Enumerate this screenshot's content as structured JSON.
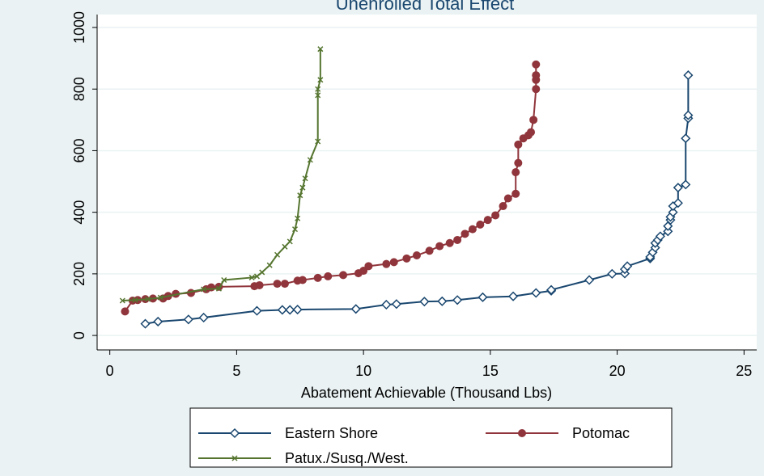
{
  "chart_data": {
    "type": "line",
    "title": "Unenrolled Total Effect",
    "x_label": "Abatement Achievable (Thousand Lbs)",
    "xlim": [
      -0.5,
      25.5
    ],
    "ylim": [
      -47,
      1042
    ],
    "xticks": [
      0,
      5,
      10,
      15,
      20,
      25
    ],
    "yticks": [
      0,
      200,
      400,
      600,
      800,
      1000
    ],
    "grid": true,
    "legend": "bottom",
    "series": [
      {
        "name": "Eastern Shore",
        "color": "#1a476f",
        "marker": "diamond",
        "x": [
          1.4,
          1.9,
          3.1,
          3.7,
          5.8,
          6.8,
          7.1,
          7.4,
          9.7,
          10.9,
          11.3,
          12.4,
          13.1,
          13.7,
          14.7,
          15.9,
          16.8,
          17.4,
          17.4,
          18.9,
          19.8,
          20.3,
          20.3,
          20.4,
          21.3,
          21.3,
          21.4,
          21.5,
          21.5,
          21.6,
          21.7,
          22.0,
          22.0,
          22.1,
          22.1,
          22.2,
          22.2,
          22.4,
          22.4,
          22.7,
          22.7,
          22.8,
          22.8,
          22.8
        ],
        "values": [
          38,
          45,
          52,
          58,
          80,
          83,
          83,
          84,
          86,
          100,
          102,
          110,
          111,
          115,
          124,
          127,
          138,
          145,
          148,
          180,
          200,
          201,
          215,
          225,
          250,
          255,
          270,
          285,
          300,
          310,
          322,
          338,
          355,
          375,
          385,
          400,
          420,
          430,
          480,
          490,
          640,
          705,
          715,
          845
        ]
      },
      {
        "name": "Potomac",
        "color": "#90353b",
        "marker": "circle",
        "x": [
          0.6,
          0.9,
          1.1,
          1.4,
          1.7,
          2.1,
          2.3,
          2.6,
          3.2,
          3.8,
          4.0,
          4.3,
          5.7,
          5.9,
          6.6,
          6.9,
          7.4,
          7.6,
          8.2,
          8.6,
          9.2,
          9.8,
          10.0,
          10.2,
          10.9,
          11.2,
          11.7,
          12.1,
          12.6,
          13.0,
          13.4,
          13.7,
          14.0,
          14.3,
          14.6,
          14.9,
          15.2,
          15.5,
          15.7,
          16.0,
          16.0,
          16.1,
          16.1,
          16.3,
          16.5,
          16.6,
          16.7,
          16.8,
          16.8,
          16.8,
          16.8
        ],
        "values": [
          78,
          113,
          115,
          118,
          120,
          120,
          128,
          135,
          138,
          150,
          156,
          158,
          160,
          163,
          168,
          168,
          178,
          180,
          187,
          192,
          196,
          202,
          210,
          225,
          232,
          238,
          250,
          260,
          275,
          290,
          300,
          310,
          330,
          345,
          360,
          375,
          390,
          420,
          445,
          460,
          530,
          560,
          620,
          640,
          650,
          660,
          700,
          800,
          830,
          845,
          880
        ]
      },
      {
        "name": "Patux./Susq./West.",
        "color": "#55752f",
        "marker": "x",
        "x": [
          0.5,
          1.0,
          1.5,
          2.0,
          3.7,
          4.3,
          4.5,
          5.6,
          5.8,
          6.0,
          6.3,
          6.6,
          6.9,
          7.1,
          7.3,
          7.4,
          7.5,
          7.6,
          7.7,
          7.9,
          8.2,
          8.2,
          8.2,
          8.3,
          8.3
        ],
        "values": [
          113,
          115,
          118,
          123,
          150,
          152,
          180,
          188,
          192,
          205,
          228,
          262,
          288,
          305,
          345,
          380,
          455,
          480,
          510,
          570,
          630,
          780,
          800,
          830,
          930
        ]
      }
    ]
  }
}
